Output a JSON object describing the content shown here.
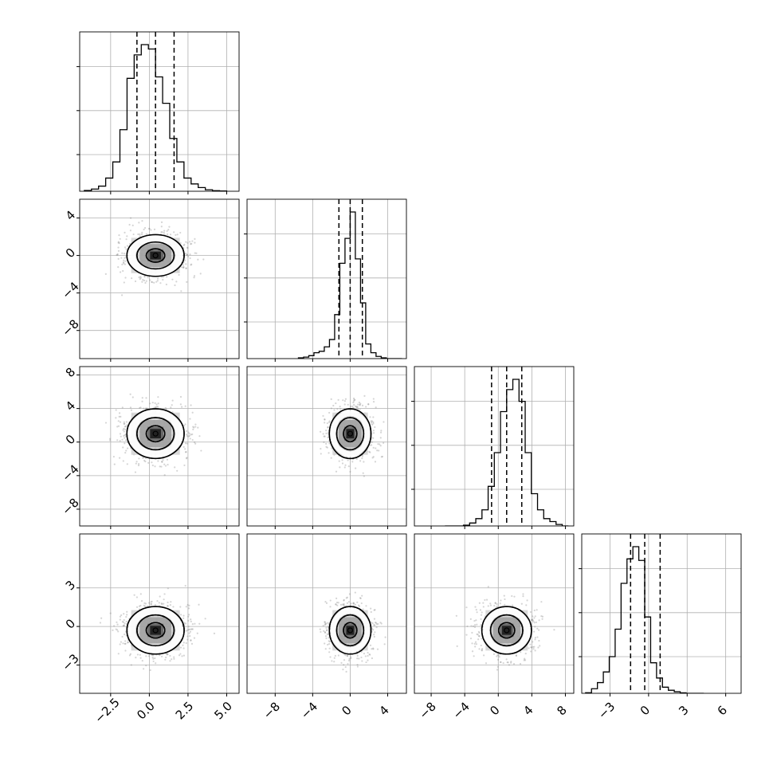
{
  "chart_data": {
    "type": "corner",
    "n_params": 4,
    "labels": [
      "",
      "",
      "",
      ""
    ],
    "grid": true,
    "colors": {
      "line": "#000000",
      "grid": "#b0b0b0",
      "scatter": "#888888"
    },
    "params": [
      {
        "range": [
          -4.5,
          5.8
        ],
        "ticks": [
          -2.5,
          0.0,
          2.5,
          5.0
        ],
        "tick_labels": [
          "−2.5",
          "0.0",
          "2.5",
          "5.0"
        ],
        "quantiles": [
          -0.8,
          0.4,
          1.6
        ],
        "mean": 0.4,
        "sd": 1.0,
        "hist": [
          0.005,
          0.015,
          0.035,
          0.09,
          0.2,
          0.42,
          0.77,
          0.93,
          1.0,
          0.97,
          0.78,
          0.6,
          0.36,
          0.2,
          0.09,
          0.05,
          0.025,
          0.01,
          0.004,
          0.002
        ]
      },
      {
        "range": [
          -11.0,
          6.0
        ],
        "ticks": [
          -8,
          -4,
          0,
          4
        ],
        "tick_labels": [
          "−8",
          "−4",
          "0",
          "4"
        ],
        "quantiles": [
          -1.2,
          0.0,
          1.3
        ],
        "mean": 0.0,
        "sd": 1.2,
        "hist": [
          0.005,
          0.01,
          0.02,
          0.04,
          0.05,
          0.08,
          0.13,
          0.3,
          0.65,
          0.82,
          1.0,
          0.68,
          0.38,
          0.1,
          0.04,
          0.015,
          0.005,
          0.0,
          0.0,
          0.0
        ]
      },
      {
        "range": [
          -10.0,
          9.0
        ],
        "ticks": [
          -8,
          -4,
          0,
          4,
          8
        ],
        "tick_labels": [
          "−8",
          "−4",
          "0",
          "4",
          "8"
        ],
        "quantiles": [
          -0.8,
          1.0,
          2.8
        ],
        "mean": 1.0,
        "sd": 1.6,
        "hist": [
          0.0,
          0.0,
          0.0,
          0.005,
          0.02,
          0.05,
          0.11,
          0.27,
          0.5,
          0.78,
          0.93,
          1.0,
          0.85,
          0.5,
          0.22,
          0.11,
          0.05,
          0.03,
          0.01,
          0.0
        ]
      },
      {
        "range": [
          -5.2,
          7.2
        ],
        "ticks": [
          -3,
          0,
          3,
          6
        ],
        "tick_labels": [
          "−3",
          "0",
          "3",
          "6"
        ],
        "quantiles": [
          -1.4,
          -0.3,
          0.9
        ],
        "mean": -0.3,
        "sd": 1.0,
        "hist": [
          0.004,
          0.03,
          0.07,
          0.14,
          0.24,
          0.42,
          0.72,
          0.88,
          0.96,
          0.87,
          0.5,
          0.2,
          0.1,
          0.04,
          0.02,
          0.01,
          0.003,
          0.0,
          0.0,
          0.0
        ]
      }
    ],
    "y_axis": {
      "1": {
        "ticks": [
          -8,
          -4,
          0,
          4
        ],
        "tick_labels": [
          "−8",
          "−4",
          "0",
          "4"
        ]
      },
      "2": {
        "ticks": [
          -8,
          -4,
          0,
          4,
          8
        ],
        "tick_labels": [
          "−8",
          "−4",
          "0",
          "4",
          "8"
        ]
      },
      "3": {
        "ticks": [
          -3,
          0,
          3
        ],
        "tick_labels": [
          "−3",
          "0",
          "3"
        ]
      }
    },
    "contour_levels": [
      0.6,
      1.2,
      1.85
    ]
  }
}
